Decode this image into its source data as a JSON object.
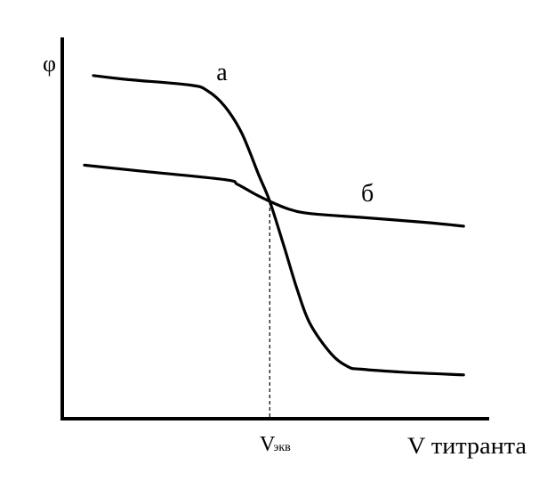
{
  "chart_data": {
    "type": "line",
    "title": "",
    "ylabel": "φ",
    "xlabel": "V титранта",
    "xlim": [
      0,
      1
    ],
    "ylim": [
      0,
      1
    ],
    "grid": false,
    "legend": "none",
    "axis_color": "#000000",
    "curve_color": "#000000",
    "equivalence": {
      "label_main": "V",
      "label_sub": "экв",
      "x": 0.486
    },
    "series": [
      {
        "name": "а",
        "x": [
          0.073,
          0.15,
          0.3,
          0.34,
          0.38,
          0.42,
          0.46,
          0.486,
          0.52,
          0.55,
          0.58,
          0.63,
          0.67,
          0.7,
          0.8,
          0.94
        ],
        "y": [
          0.9,
          0.89,
          0.875,
          0.86,
          0.82,
          0.75,
          0.64,
          0.57,
          0.45,
          0.34,
          0.25,
          0.17,
          0.136,
          0.13,
          0.122,
          0.115
        ]
      },
      {
        "name": "б",
        "x": [
          0.052,
          0.18,
          0.38,
          0.41,
          0.45,
          0.486,
          0.53,
          0.58,
          0.7,
          0.85,
          0.94
        ],
        "y": [
          0.665,
          0.65,
          0.627,
          0.615,
          0.59,
          0.57,
          0.55,
          0.538,
          0.528,
          0.515,
          0.505
        ]
      }
    ]
  }
}
